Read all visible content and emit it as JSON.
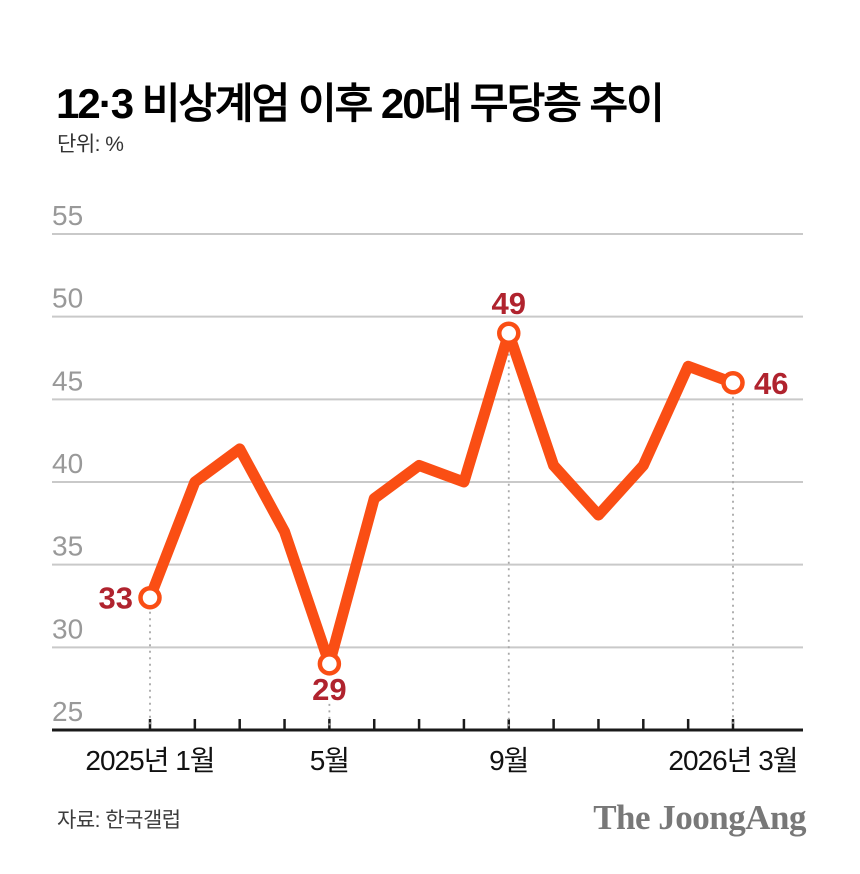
{
  "page": {
    "title": "12·3 비상계엄 이후 20대 무당층 추이",
    "unit_label": "단위: %",
    "source": "자료: 한국갤럽",
    "logo": "The JoongAng"
  },
  "colors": {
    "line": "#fa4e14",
    "marker_fill": "#ffffff",
    "value_label": "#b0232e",
    "y_axis_text": "#999999",
    "x_axis_text": "#111111",
    "gridline": "#c9c9c9",
    "axis_line": "#1a1a1a",
    "dashed_line": "#a8a8a8"
  },
  "chart_data": {
    "type": "line",
    "title": "12·3 비상계엄 이후 20대 무당층 추이",
    "unit": "%",
    "ylim": [
      25,
      55
    ],
    "y_ticks": [
      55,
      50,
      45,
      40,
      35,
      30,
      25
    ],
    "grid": "horizontal",
    "legend": "none",
    "x_tick_count": 14,
    "x_labels": [
      {
        "index": 0,
        "label": "2025년 1월"
      },
      {
        "index": 4,
        "label": "5월"
      },
      {
        "index": 8,
        "label": "9월"
      },
      {
        "index": 13,
        "label": "2026년 3월"
      }
    ],
    "values": [
      33,
      40,
      42,
      37,
      29,
      39,
      41,
      40,
      49,
      41,
      38,
      41,
      47,
      46
    ],
    "annotated_points": [
      {
        "index": 0,
        "value": 33,
        "position": "left"
      },
      {
        "index": 4,
        "value": 29,
        "position": "below"
      },
      {
        "index": 8,
        "value": 49,
        "position": "above"
      },
      {
        "index": 13,
        "value": 46,
        "position": "right"
      }
    ]
  }
}
